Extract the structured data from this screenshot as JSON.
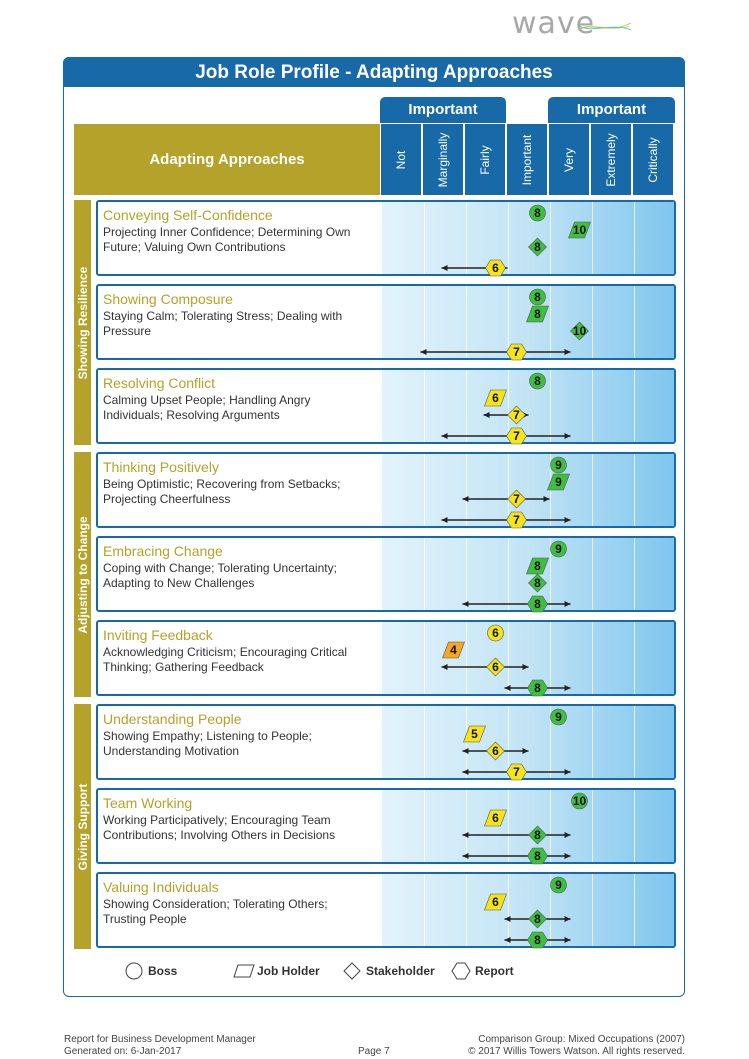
{
  "logo": "wave",
  "title": "Job Role Profile - Adapting Approaches",
  "important_tabs": [
    "Important",
    "Important"
  ],
  "header_label": "Adapting Approaches",
  "scale_labels": [
    "Not",
    "Marginally",
    "Fairly",
    "Important",
    "Very",
    "Extremely",
    "Critically"
  ],
  "sections": [
    {
      "label": "Showing Resilience"
    },
    {
      "label": "Adjusting to Change"
    },
    {
      "label": "Giving Support"
    }
  ],
  "rows": [
    {
      "title": "Conveying Self-Confidence",
      "desc": "Projecting Inner Confidence; Determining Own Future; Valuing Own Contributions",
      "marks": [
        {
          "type": "boss",
          "value": 8
        },
        {
          "type": "jobholder",
          "value": 10
        },
        {
          "type": "stakeholder",
          "value": 8
        },
        {
          "type": "report",
          "value": 6,
          "range": [
            4,
            6
          ]
        }
      ]
    },
    {
      "title": "Showing Composure",
      "desc": "Staying Calm; Tolerating Stress; Dealing with Pressure",
      "marks": [
        {
          "type": "boss",
          "value": 8
        },
        {
          "type": "jobholder",
          "value": 8
        },
        {
          "type": "stakeholder",
          "value": 10
        },
        {
          "type": "report",
          "value": 7,
          "range": [
            3,
            9
          ]
        }
      ]
    },
    {
      "title": "Resolving Conflict",
      "desc": "Calming Upset People; Handling Angry Individuals; Resolving Arguments",
      "marks": [
        {
          "type": "boss",
          "value": 8
        },
        {
          "type": "jobholder",
          "value": 6
        },
        {
          "type": "stakeholder",
          "value": 7,
          "range": [
            6,
            7
          ]
        },
        {
          "type": "report",
          "value": 7,
          "range": [
            4,
            9
          ]
        }
      ]
    },
    {
      "title": "Thinking Positively",
      "desc": "Being Optimistic; Recovering from Setbacks; Projecting Cheerfulness",
      "marks": [
        {
          "type": "boss",
          "value": 9
        },
        {
          "type": "jobholder",
          "value": 9
        },
        {
          "type": "stakeholder",
          "value": 7,
          "range": [
            5,
            8
          ]
        },
        {
          "type": "report",
          "value": 7,
          "range": [
            4,
            9
          ]
        }
      ]
    },
    {
      "title": "Embracing Change",
      "desc": "Coping with Change; Tolerating Uncertainty; Adapting to New Challenges",
      "marks": [
        {
          "type": "boss",
          "value": 9
        },
        {
          "type": "jobholder",
          "value": 8
        },
        {
          "type": "stakeholder",
          "value": 8
        },
        {
          "type": "report",
          "value": 8,
          "range": [
            5,
            9
          ]
        }
      ]
    },
    {
      "title": "Inviting Feedback",
      "desc": "Acknowledging Criticism; Encouraging Critical Thinking; Gathering Feedback",
      "marks": [
        {
          "type": "boss",
          "value": 6
        },
        {
          "type": "jobholder",
          "value": 4
        },
        {
          "type": "stakeholder",
          "value": 6,
          "range": [
            4,
            7
          ]
        },
        {
          "type": "report",
          "value": 8,
          "range": [
            7,
            9
          ]
        }
      ]
    },
    {
      "title": "Understanding People",
      "desc": "Showing Empathy; Listening to People; Understanding Motivation",
      "marks": [
        {
          "type": "boss",
          "value": 9
        },
        {
          "type": "jobholder",
          "value": 5
        },
        {
          "type": "stakeholder",
          "value": 6,
          "range": [
            5,
            7
          ]
        },
        {
          "type": "report",
          "value": 7,
          "range": [
            5,
            9
          ]
        }
      ]
    },
    {
      "title": "Team Working",
      "desc": "Working Participatively; Encouraging Team Contributions; Involving Others in Decisions",
      "marks": [
        {
          "type": "boss",
          "value": 10
        },
        {
          "type": "jobholder",
          "value": 6
        },
        {
          "type": "stakeholder",
          "value": 8,
          "range": [
            5,
            9
          ]
        },
        {
          "type": "report",
          "value": 8,
          "range": [
            5,
            9
          ]
        }
      ]
    },
    {
      "title": "Valuing Individuals",
      "desc": "Showing Consideration; Tolerating Others; Trusting People",
      "marks": [
        {
          "type": "boss",
          "value": 9
        },
        {
          "type": "jobholder",
          "value": 6
        },
        {
          "type": "stakeholder",
          "value": 8,
          "range": [
            7,
            9
          ]
        },
        {
          "type": "report",
          "value": 8,
          "range": [
            7,
            9
          ]
        }
      ]
    }
  ],
  "legend": [
    "Boss",
    "Job Holder",
    "Stakeholder",
    "Report"
  ],
  "colors": {
    "brand_blue": "#1769a8",
    "olive": "#b5a22a",
    "green": "#3fbf3f",
    "yellow": "#f5e418",
    "orange": "#f5a623"
  },
  "footer": {
    "left1": "Report for Business Development Manager",
    "left2": "Generated on: 6-Jan-2017",
    "page": "Page 7",
    "right1": "Comparison Group: Mixed Occupations (2007)",
    "right2": "© 2017 Willis Towers Watson. All rights reserved."
  }
}
